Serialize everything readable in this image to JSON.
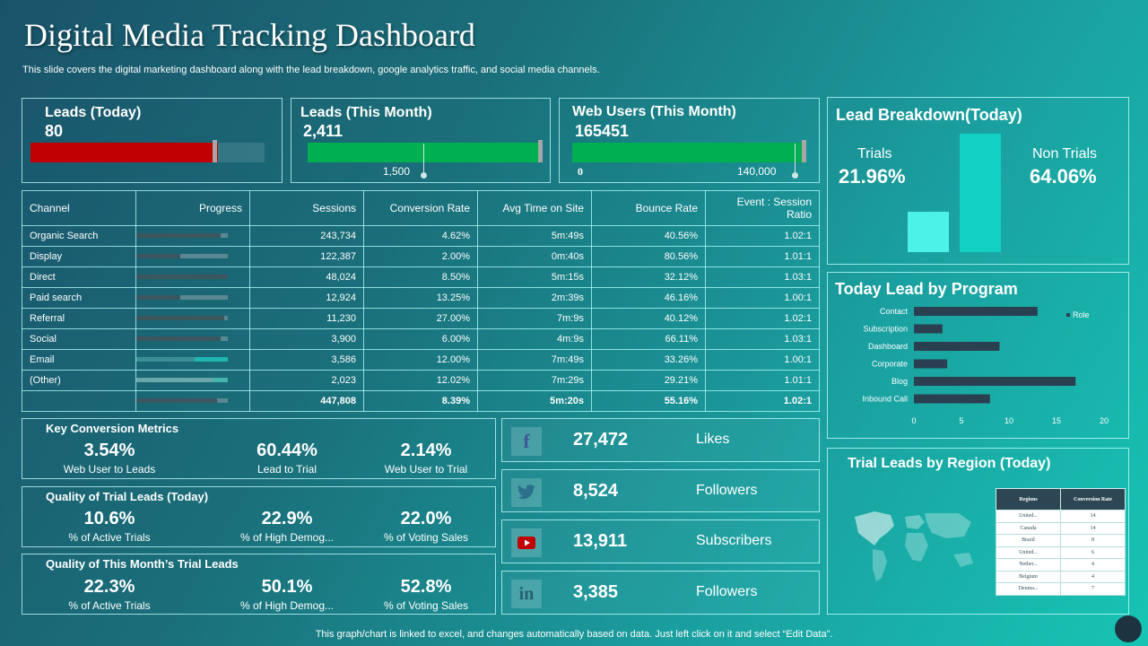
{
  "page": {
    "title": "Digital Media Tracking Dashboard",
    "subtitle": "This slide covers the digital marketing dashboard along with the lead breakdown, google analytics traffic, and social media channels.",
    "footer": "This graph/chart is linked to excel, and changes automatically based on data. Just left click on it and select “Edit Data”."
  },
  "kpis": {
    "leads_today": {
      "label": "Leads (Today)",
      "value": "80",
      "progress": 0.8,
      "color": "#c00000"
    },
    "leads_month": {
      "label": "Leads (This Month)",
      "value": "2,411",
      "target_label": "1,500",
      "progress": 1.0,
      "color": "#00b050"
    },
    "web_users": {
      "label": "Web Users (This Month)",
      "value": "165451",
      "min_label": "0",
      "target_label": "140,000",
      "progress": 1.0,
      "color": "#00b050"
    }
  },
  "channel_table": {
    "headers": [
      "Channel",
      "Progress",
      "Sessions",
      "Conversion Rate",
      "Avg Time on Site",
      "Bounce Rate",
      "Event : Session Ratio"
    ],
    "rows": [
      {
        "channel": "Organic Search",
        "progress": 0.92,
        "sessions": "243,734",
        "conversion": "4.62%",
        "avg_time": "5m:49s",
        "bounce": "40.56%",
        "ratio": "1.02:1"
      },
      {
        "channel": "Display",
        "progress": 0.48,
        "sessions": "122,387",
        "conversion": "2.00%",
        "avg_time": "0m:40s",
        "bounce": "80.56%",
        "ratio": "1.01:1"
      },
      {
        "channel": "Direct",
        "progress": 1.0,
        "sessions": "48,024",
        "conversion": "8.50%",
        "avg_time": "5m:15s",
        "bounce": "32.12%",
        "ratio": "1.03:1"
      },
      {
        "channel": "Paid search",
        "progress": 0.48,
        "sessions": "12,924",
        "conversion": "13.25%",
        "avg_time": "2m:39s",
        "bounce": "46.16%",
        "ratio": "1.00:1"
      },
      {
        "channel": "Referral",
        "progress": 0.96,
        "sessions": "11,230",
        "conversion": "27.00%",
        "avg_time": "7m:9s",
        "bounce": "40.12%",
        "ratio": "1.02:1"
      },
      {
        "channel": "Social",
        "progress": 0.92,
        "sessions": "3,900",
        "conversion": "6.00%",
        "avg_time": "4m:9s",
        "bounce": "66.11%",
        "ratio": "1.03:1"
      },
      {
        "channel": "Email",
        "progress": 0.64,
        "sessions": "3,586",
        "conversion": "12.00%",
        "avg_time": "7m:49s",
        "bounce": "33.26%",
        "ratio": "1.00:1"
      },
      {
        "channel": "(Other)",
        "progress": 0.84,
        "sessions": "2,023",
        "conversion": "12.02%",
        "avg_time": "7m:29s",
        "bounce": "29.21%",
        "ratio": "1.01:1"
      }
    ],
    "total": {
      "channel": "",
      "progress": 0.88,
      "sessions": "447,808",
      "conversion": "8.39%",
      "avg_time": "5m:20s",
      "bounce": "55.16%",
      "ratio": "1.02:1"
    }
  },
  "key_conversion": {
    "title": "Key Conversion Metrics",
    "metrics": [
      {
        "value": "3.54%",
        "label": "Web User to Leads"
      },
      {
        "value": "60.44%",
        "label": "Lead to Trial"
      },
      {
        "value": "2.14%",
        "label": "Web User to Trial"
      }
    ]
  },
  "quality_today": {
    "title": "Quality of Trial Leads (Today)",
    "metrics": [
      {
        "value": "10.6%",
        "label": "% of Active Trials"
      },
      {
        "value": "22.9%",
        "label": "% of High Demog..."
      },
      {
        "value": "22.0%",
        "label": "% of Voting Sales"
      }
    ]
  },
  "quality_month": {
    "title": "Quality of This Month’s Trial Leads",
    "metrics": [
      {
        "value": "22.3%",
        "label": "% of Active Trials"
      },
      {
        "value": "50.1%",
        "label": "% of High Demog..."
      },
      {
        "value": "52.8%",
        "label": "% of Voting Sales"
      }
    ]
  },
  "social": [
    {
      "icon": "facebook-icon",
      "glyph": "f",
      "value": "27,472",
      "label": "Likes"
    },
    {
      "icon": "twitter-icon",
      "glyph": "",
      "value": "8,524",
      "label": "Followers"
    },
    {
      "icon": "youtube-icon",
      "glyph": "",
      "value": "13,911",
      "label": "Subscribers"
    },
    {
      "icon": "linkedin-icon",
      "glyph": "in",
      "value": "3,385",
      "label": "Followers"
    }
  ],
  "lead_breakdown": {
    "title": "Lead Breakdown(Today)",
    "trials_label": "Trials",
    "trials_value": "21.96%",
    "non_trials_label": "Non Trials",
    "non_trials_value": "64.06%"
  },
  "lead_by_program": {
    "title": "Today Lead by Program",
    "legend": "Role"
  },
  "region": {
    "title": "Trial Leads by Region (Today)",
    "headers": [
      "Regions",
      "Conversion Rate"
    ],
    "rows": [
      [
        "United...",
        "14"
      ],
      [
        "Canada",
        "14"
      ],
      [
        "Brazil",
        "8"
      ],
      [
        "United...",
        "6"
      ],
      [
        "Nether...",
        "4"
      ],
      [
        "Belgium",
        "4"
      ],
      [
        "Denma...",
        "7"
      ]
    ]
  },
  "chart_data": [
    {
      "type": "bar",
      "categories": [
        "Trials",
        "Non Trials"
      ],
      "values": [
        21.96,
        64.06
      ],
      "colors": [
        "#4cf2e8",
        "#12d1c4"
      ]
    },
    {
      "type": "bar",
      "orientation": "horizontal",
      "categories": [
        "Contact",
        "Subscription",
        "Dashboard",
        "Corporate",
        "Blog",
        "Inbound Call"
      ],
      "series": [
        {
          "name": "Role",
          "values": [
            13,
            3,
            9,
            3.5,
            17,
            8
          ]
        }
      ],
      "xlim": [
        0,
        20
      ],
      "xticks": [
        "0",
        "5",
        "10",
        "15",
        "20"
      ],
      "color": "#2a3f4f"
    }
  ]
}
